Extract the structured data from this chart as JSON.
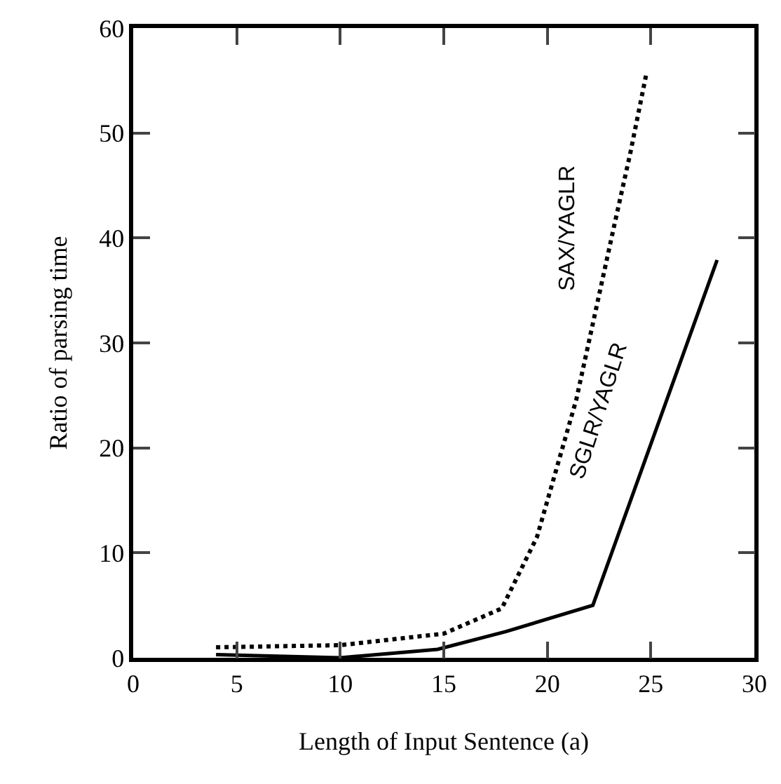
{
  "chart_data": {
    "type": "line",
    "xlabel": "Length of Input Sentence (a)",
    "ylabel": "Ratio of parsing time",
    "xlim": [
      0,
      30
    ],
    "xticks": [
      0,
      5,
      10,
      15,
      20,
      25,
      30
    ],
    "ylim": [
      0,
      60
    ],
    "yticks": [
      0,
      10,
      20,
      30,
      40,
      50,
      60
    ],
    "grid": false,
    "legend": false,
    "series": [
      {
        "name": "SAX/YAGLR",
        "color": "#000000",
        "line_style": "dotted",
        "x": [
          4,
          10,
          15,
          17.8,
          19.5,
          21.4,
          23.2,
          24,
          24.8
        ],
        "values": [
          1,
          1.2,
          2.3,
          4.7,
          11.5,
          24.6,
          40.9,
          48,
          55.8
        ]
      },
      {
        "name": "SGLR/YAGLR",
        "color": "#000000",
        "line_style": "solid",
        "x": [
          4,
          10,
          14.7,
          18,
          22.2,
          28.2
        ],
        "values": [
          0.3,
          0,
          0.8,
          2.5,
          5,
          37.9
        ]
      }
    ]
  }
}
